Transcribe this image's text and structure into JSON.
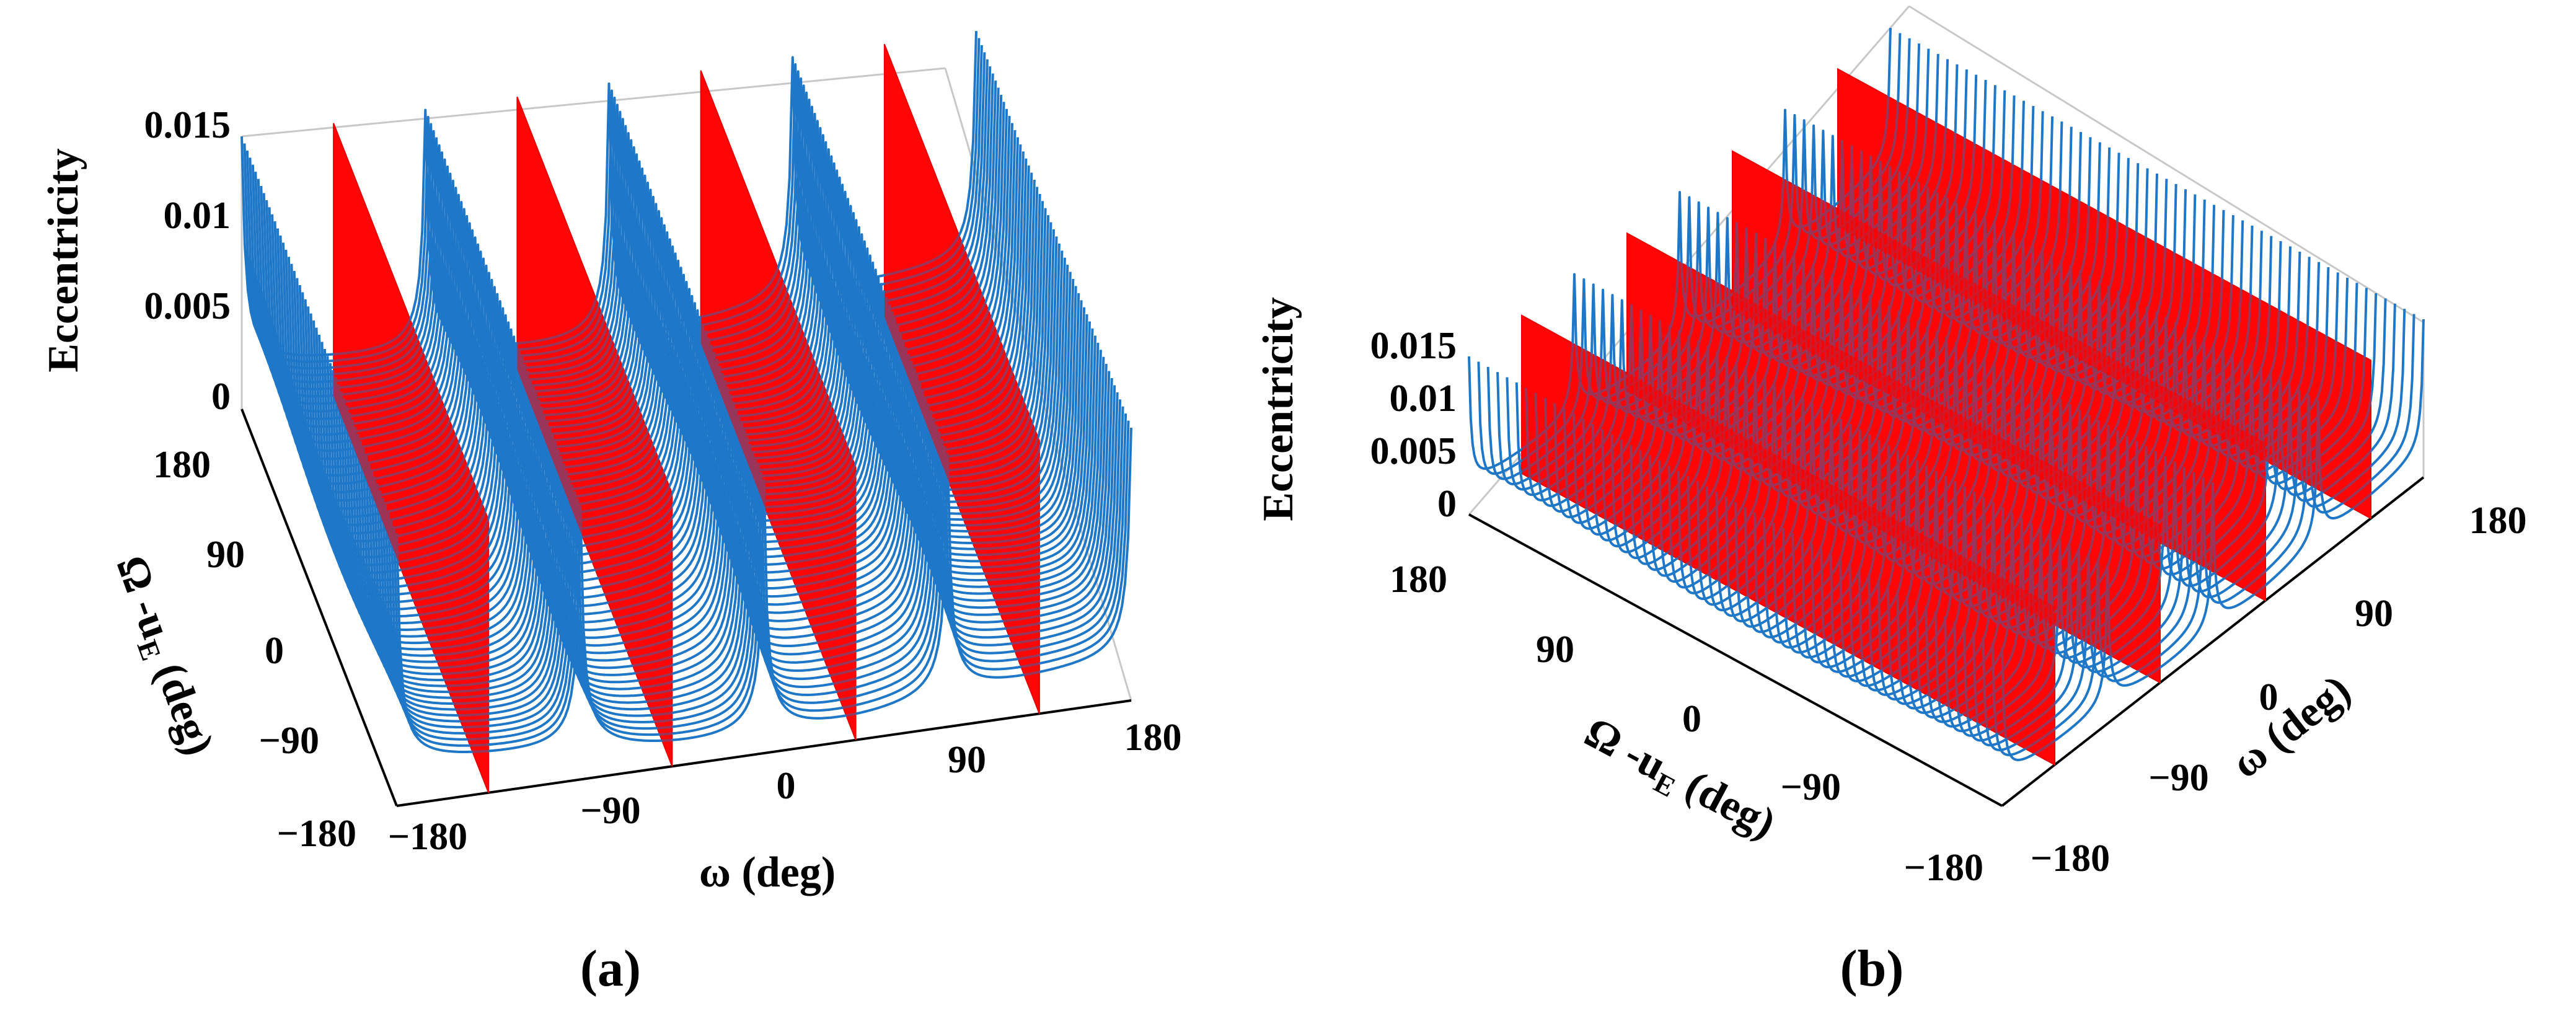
{
  "colors": {
    "curves": "#1f77c8",
    "planes": "#ff0000",
    "box": "#c8c8c8",
    "axis": "#000000"
  },
  "chart_data": [
    {
      "type": "3d-line",
      "panel_label": "(a)",
      "view": "azimuth from front-left, omega horizontal",
      "xlabel": "ω  (deg)",
      "ylabel_main": "Ω -u",
      "ylabel_sub": "E",
      "ylabel_tail": " (deg)",
      "zlabel": "Eccentricity",
      "xlim": [
        -180,
        180
      ],
      "ylim": [
        -180,
        180
      ],
      "zlim": [
        0,
        0.015
      ],
      "x_ticks": [
        "−180",
        "−90",
        "0",
        "90",
        "180"
      ],
      "y_ticks": [
        "180",
        "90",
        "0",
        "−90",
        "−180"
      ],
      "z_ticks": [
        "0.015",
        "0.01",
        "0.005",
        "0"
      ],
      "grid": false,
      "red_plane_omega_deg": [
        -135,
        -45,
        45,
        135
      ],
      "blue_curve_families": 4,
      "curve_peak_eccentricity": 0.015
    },
    {
      "type": "3d-line",
      "panel_label": "(b)",
      "view": "azimuth rotated, omega on right axis",
      "xlabel": "ω  (deg)",
      "ylabel_main": "Ω -u",
      "ylabel_sub": "E",
      "ylabel_tail": " (deg)",
      "zlabel": "Eccentricity",
      "xlim": [
        -180,
        180
      ],
      "ylim": [
        -180,
        180
      ],
      "zlim": [
        0,
        0.015
      ],
      "x_ticks": [
        "−180",
        "−90",
        "0",
        "90",
        "180"
      ],
      "y_ticks": [
        "180",
        "90",
        "0",
        "−90",
        "−180"
      ],
      "z_ticks": [
        "0.015",
        "0.01",
        "0.005",
        "0"
      ],
      "grid": false,
      "red_plane_omega_deg": [
        -135,
        -45,
        45,
        135
      ],
      "blue_curve_families": 4,
      "curve_peak_eccentricity": 0.015
    }
  ]
}
